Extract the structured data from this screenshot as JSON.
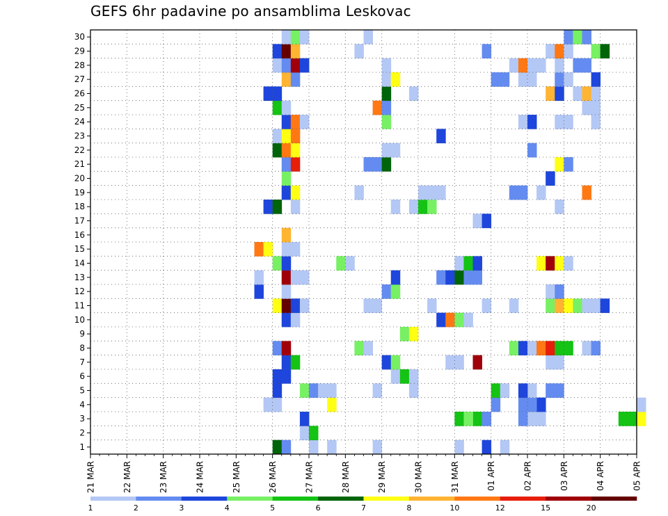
{
  "chart_data": {
    "type": "heatmap",
    "title": "GEFS 6hr padavine po ansamblima Leskovac",
    "y_members": [
      1,
      2,
      3,
      4,
      5,
      6,
      7,
      8,
      9,
      10,
      11,
      12,
      13,
      14,
      15,
      16,
      17,
      18,
      19,
      20,
      21,
      22,
      23,
      24,
      25,
      26,
      27,
      28,
      29,
      30
    ],
    "y_tick_labels": [
      "1",
      "2",
      "3",
      "4",
      "5",
      "6",
      "7",
      "8",
      "9",
      "10",
      "11",
      "12",
      "13",
      "14",
      "15",
      "16",
      "17",
      "18",
      "19",
      "20",
      "21",
      "22",
      "23",
      "24",
      "25",
      "26",
      "27",
      "28",
      "29",
      "30"
    ],
    "x_tick_labels": [
      "21 MAR",
      "22 MAR",
      "23 MAR",
      "24 MAR",
      "25 MAR",
      "26 MAR",
      "27 MAR",
      "28 MAR",
      "29 MAR",
      "30 MAR",
      "31 MAR",
      "01 APR",
      "02 APR",
      "03 APR",
      "04 APR",
      "05 APR"
    ],
    "time_step_hours": 6,
    "steps_per_day": 4,
    "grid": "dotted",
    "colorbar": {
      "tick_labels": [
        "1",
        "2",
        "3",
        "4",
        "5",
        "6",
        "7",
        "8",
        "10",
        "12",
        "15",
        "20"
      ],
      "colors": [
        "#b4c8f5",
        "#648cf0",
        "#1e46dc",
        "#78f064",
        "#14c314",
        "#00640a",
        "#ffff14",
        "#ffb432",
        "#ff7814",
        "#e61e0a",
        "#a0000a",
        "#640000"
      ]
    },
    "cells": [
      [
        0,
        20,
        6
      ],
      [
        0,
        21,
        2
      ],
      [
        0,
        24,
        1
      ],
      [
        0,
        26,
        1
      ],
      [
        0,
        31,
        1
      ],
      [
        0,
        40,
        1
      ],
      [
        0,
        43,
        3
      ],
      [
        0,
        45,
        1
      ],
      [
        1,
        23,
        1
      ],
      [
        1,
        24,
        5
      ],
      [
        2,
        23,
        3
      ],
      [
        2,
        40,
        5
      ],
      [
        2,
        42,
        5
      ],
      [
        2,
        43,
        2
      ],
      [
        2,
        41,
        4
      ],
      [
        2,
        48,
        1
      ],
      [
        2,
        49,
        1
      ],
      [
        2,
        47,
        2
      ],
      [
        2,
        58,
        5
      ],
      [
        2,
        59,
        5
      ],
      [
        2,
        60,
        7
      ],
      [
        3,
        19,
        1
      ],
      [
        3,
        20,
        1
      ],
      [
        3,
        26,
        7
      ],
      [
        3,
        44,
        2
      ],
      [
        3,
        49,
        3
      ],
      [
        3,
        48,
        2
      ],
      [
        3,
        47,
        2
      ],
      [
        3,
        60,
        1
      ],
      [
        4,
        20,
        3
      ],
      [
        4,
        23,
        4
      ],
      [
        4,
        24,
        2
      ],
      [
        4,
        25,
        1
      ],
      [
        4,
        26,
        1
      ],
      [
        4,
        31,
        1
      ],
      [
        4,
        35,
        1
      ],
      [
        4,
        44,
        5
      ],
      [
        4,
        45,
        1
      ],
      [
        4,
        48,
        1
      ],
      [
        4,
        47,
        3
      ],
      [
        4,
        50,
        2
      ],
      [
        4,
        51,
        2
      ],
      [
        5,
        20,
        3
      ],
      [
        5,
        21,
        3
      ],
      [
        5,
        33,
        1
      ],
      [
        5,
        34,
        5
      ],
      [
        5,
        35,
        1
      ],
      [
        6,
        21,
        3
      ],
      [
        6,
        22,
        5
      ],
      [
        6,
        32,
        3
      ],
      [
        6,
        33,
        4
      ],
      [
        6,
        40,
        1
      ],
      [
        6,
        39,
        1
      ],
      [
        6,
        42,
        11
      ],
      [
        6,
        50,
        1
      ],
      [
        6,
        51,
        1
      ],
      [
        7,
        20,
        2
      ],
      [
        7,
        21,
        11
      ],
      [
        7,
        29,
        4
      ],
      [
        7,
        30,
        1
      ],
      [
        7,
        46,
        4
      ],
      [
        7,
        47,
        3
      ],
      [
        7,
        48,
        1
      ],
      [
        7,
        49,
        9
      ],
      [
        7,
        50,
        10
      ],
      [
        7,
        51,
        5
      ],
      [
        7,
        52,
        5
      ],
      [
        7,
        54,
        1
      ],
      [
        7,
        55,
        2
      ],
      [
        8,
        34,
        4
      ],
      [
        8,
        35,
        7
      ],
      [
        9,
        21,
        3
      ],
      [
        9,
        22,
        1
      ],
      [
        9,
        38,
        3
      ],
      [
        9,
        39,
        9
      ],
      [
        9,
        40,
        4
      ],
      [
        9,
        41,
        1
      ],
      [
        10,
        20,
        7
      ],
      [
        10,
        21,
        12
      ],
      [
        10,
        22,
        3
      ],
      [
        10,
        23,
        1
      ],
      [
        10,
        30,
        1
      ],
      [
        10,
        31,
        1
      ],
      [
        10,
        37,
        1
      ],
      [
        10,
        43,
        1
      ],
      [
        10,
        46,
        1
      ],
      [
        10,
        50,
        4
      ],
      [
        10,
        51,
        8
      ],
      [
        10,
        52,
        7
      ],
      [
        10,
        53,
        4
      ],
      [
        10,
        54,
        1
      ],
      [
        10,
        55,
        1
      ],
      [
        10,
        56,
        3
      ],
      [
        11,
        18,
        3
      ],
      [
        11,
        21,
        1
      ],
      [
        11,
        32,
        2
      ],
      [
        11,
        33,
        4
      ],
      [
        11,
        50,
        1
      ],
      [
        11,
        51,
        2
      ],
      [
        12,
        18,
        1
      ],
      [
        12,
        21,
        11
      ],
      [
        12,
        22,
        1
      ],
      [
        12,
        23,
        1
      ],
      [
        12,
        33,
        3
      ],
      [
        12,
        38,
        2
      ],
      [
        12,
        39,
        3
      ],
      [
        12,
        40,
        6
      ],
      [
        12,
        41,
        2
      ],
      [
        12,
        42,
        2
      ],
      [
        13,
        20,
        4
      ],
      [
        13,
        21,
        3
      ],
      [
        13,
        27,
        4
      ],
      [
        13,
        28,
        1
      ],
      [
        13,
        40,
        1
      ],
      [
        13,
        41,
        5
      ],
      [
        13,
        42,
        3
      ],
      [
        13,
        49,
        7
      ],
      [
        13,
        50,
        11
      ],
      [
        13,
        51,
        7
      ],
      [
        13,
        52,
        1
      ],
      [
        14,
        18,
        9
      ],
      [
        14,
        19,
        7
      ],
      [
        14,
        21,
        1
      ],
      [
        14,
        22,
        1
      ],
      [
        15,
        21,
        8
      ],
      [
        16,
        42,
        1
      ],
      [
        16,
        43,
        3
      ],
      [
        17,
        19,
        3
      ],
      [
        17,
        20,
        6
      ],
      [
        17,
        22,
        1
      ],
      [
        17,
        33,
        1
      ],
      [
        17,
        35,
        1
      ],
      [
        17,
        36,
        5
      ],
      [
        17,
        37,
        4
      ],
      [
        17,
        51,
        1
      ],
      [
        18,
        21,
        3
      ],
      [
        18,
        22,
        7
      ],
      [
        18,
        29,
        1
      ],
      [
        18,
        36,
        1
      ],
      [
        18,
        37,
        1
      ],
      [
        18,
        38,
        1
      ],
      [
        18,
        46,
        2
      ],
      [
        18,
        47,
        2
      ],
      [
        18,
        49,
        1
      ],
      [
        18,
        54,
        9
      ],
      [
        19,
        21,
        4
      ],
      [
        19,
        50,
        3
      ],
      [
        20,
        21,
        2
      ],
      [
        20,
        22,
        10
      ],
      [
        20,
        30,
        2
      ],
      [
        20,
        31,
        2
      ],
      [
        20,
        32,
        6
      ],
      [
        20,
        51,
        7
      ],
      [
        20,
        52,
        2
      ],
      [
        21,
        20,
        6
      ],
      [
        21,
        21,
        9
      ],
      [
        21,
        22,
        7
      ],
      [
        21,
        32,
        1
      ],
      [
        21,
        33,
        1
      ],
      [
        21,
        48,
        2
      ],
      [
        22,
        20,
        1
      ],
      [
        22,
        21,
        7
      ],
      [
        22,
        22,
        9
      ],
      [
        22,
        38,
        3
      ],
      [
        23,
        21,
        3
      ],
      [
        23,
        22,
        9
      ],
      [
        23,
        23,
        1
      ],
      [
        23,
        32,
        4
      ],
      [
        23,
        47,
        1
      ],
      [
        23,
        48,
        3
      ],
      [
        23,
        51,
        1
      ],
      [
        23,
        52,
        1
      ],
      [
        23,
        55,
        1
      ],
      [
        24,
        20,
        5
      ],
      [
        24,
        21,
        1
      ],
      [
        24,
        31,
        9
      ],
      [
        24,
        32,
        2
      ],
      [
        24,
        54,
        1
      ],
      [
        24,
        55,
        1
      ],
      [
        25,
        19,
        3
      ],
      [
        25,
        20,
        3
      ],
      [
        25,
        32,
        6
      ],
      [
        25,
        35,
        1
      ],
      [
        25,
        50,
        8
      ],
      [
        25,
        51,
        3
      ],
      [
        25,
        53,
        1
      ],
      [
        25,
        54,
        8
      ],
      [
        25,
        55,
        1
      ],
      [
        26,
        21,
        8
      ],
      [
        26,
        22,
        2
      ],
      [
        26,
        32,
        1
      ],
      [
        26,
        33,
        7
      ],
      [
        26,
        44,
        2
      ],
      [
        26,
        45,
        2
      ],
      [
        26,
        47,
        1
      ],
      [
        26,
        48,
        1
      ],
      [
        26,
        51,
        2
      ],
      [
        26,
        52,
        1
      ],
      [
        26,
        55,
        3
      ],
      [
        27,
        20,
        1
      ],
      [
        27,
        21,
        2
      ],
      [
        27,
        22,
        11
      ],
      [
        27,
        23,
        3
      ],
      [
        27,
        32,
        1
      ],
      [
        27,
        46,
        1
      ],
      [
        27,
        47,
        9
      ],
      [
        27,
        48,
        1
      ],
      [
        27,
        49,
        1
      ],
      [
        27,
        51,
        1
      ],
      [
        27,
        53,
        2
      ],
      [
        27,
        54,
        2
      ],
      [
        28,
        20,
        3
      ],
      [
        28,
        21,
        12
      ],
      [
        28,
        22,
        8
      ],
      [
        28,
        29,
        1
      ],
      [
        28,
        43,
        2
      ],
      [
        28,
        50,
        1
      ],
      [
        28,
        51,
        9
      ],
      [
        28,
        52,
        1
      ],
      [
        28,
        55,
        4
      ],
      [
        28,
        56,
        6
      ],
      [
        29,
        21,
        1
      ],
      [
        29,
        22,
        4
      ],
      [
        29,
        23,
        1
      ],
      [
        29,
        30,
        1
      ],
      [
        29,
        52,
        2
      ],
      [
        29,
        53,
        4
      ],
      [
        29,
        54,
        2
      ]
    ]
  }
}
